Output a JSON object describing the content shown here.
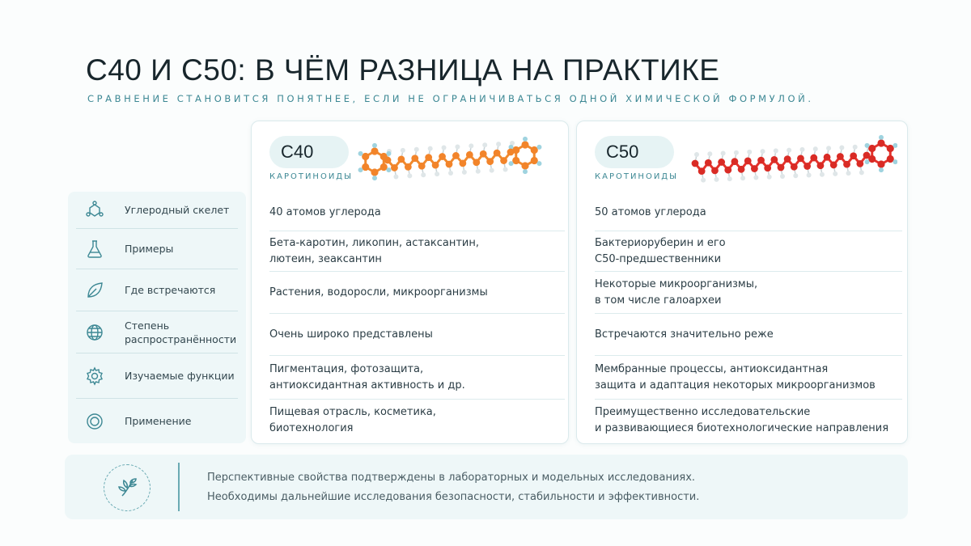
{
  "header": {
    "title": "С40 И С50: В ЧЁМ РАЗНИЦА НА ПРАКТИКЕ",
    "subtitle": "Сравнение становится понятнее, если не ограничиваться одной химической формулой."
  },
  "rows": [
    {
      "label": "Углеродный скелет",
      "icon": "molecule-icon"
    },
    {
      "label": "Примеры",
      "icon": "flask-icon"
    },
    {
      "label": "Где встречаются",
      "icon": "leaf-icon"
    },
    {
      "label": "Степень\nраспространённости",
      "icon": "globe-icon"
    },
    {
      "label": "Изучаемые функции",
      "icon": "gear-icon"
    },
    {
      "label": "Применение",
      "icon": "target-icon"
    }
  ],
  "c40": {
    "name": "С40",
    "sub": "каротиноиды",
    "cells": [
      "40 атомов углерода",
      "Бета-каротин, ликопин, астаксантин,\nлютеин, зеаксантин",
      "Растения, водоросли, микроорганизмы",
      "Очень широко представлены",
      "Пигментация, фотозащита,\nантиоксидантная активность и др.",
      "Пищевая отрасль, косметика,\nбиотехнология"
    ],
    "colors": {
      "bond": "#f08a2e",
      "atom": "#f2842a"
    }
  },
  "c50": {
    "name": "С50",
    "sub": "каротиноиды",
    "cells": [
      "50 атомов углерода",
      "Бактериоруберин и его\nС50-предшественники",
      "Некоторые микроорганизмы,\nв том числе галоархеи",
      "Встречаются значительно реже",
      "Мембранные процессы, антиоксидантная\nзащита и адаптация некоторых микроорганизмов",
      "Преимущественно исследовательские\nи развивающиеся биотехнологические направления"
    ],
    "colors": {
      "bond": "#e5322b",
      "atom": "#d92b25"
    }
  },
  "note": {
    "icon": "sprout-icon",
    "line1": "Перспективные свойства подтверждены в лабораторных и модельных исследованиях.",
    "line2": "Необходимы дальнейшие исследования безопасности, стабильности и эффективности."
  },
  "accent": "#3d8894"
}
